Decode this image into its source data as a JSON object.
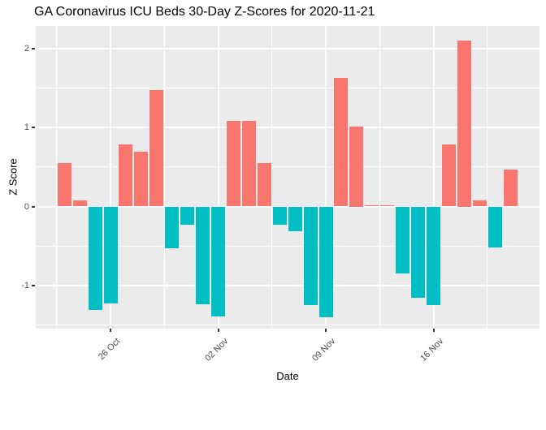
{
  "title": "GA Coronavirus ICU Beds 30-Day Z-Scores for 2020-11-21",
  "chart_data": {
    "type": "bar",
    "title": "GA Coronavirus ICU Beds 30-Day Z-Scores for 2020-11-21",
    "xlabel": "Date",
    "ylabel": "Z Score",
    "legend": "none",
    "grid": "major-and-minor",
    "panel_bg": "#EBEBEB",
    "gridline_color": "#FFFFFF",
    "tick_label_color": "#4D4D4D",
    "positive_color": "#F8766D",
    "negative_color": "#00BFC4",
    "ylim": [
      -1.55,
      2.28
    ],
    "x": [
      "2020-10-23",
      "2020-10-24",
      "2020-10-25",
      "2020-10-26",
      "2020-10-27",
      "2020-10-28",
      "2020-10-29",
      "2020-10-30",
      "2020-10-31",
      "2020-11-01",
      "2020-11-02",
      "2020-11-03",
      "2020-11-04",
      "2020-11-05",
      "2020-11-06",
      "2020-11-07",
      "2020-11-08",
      "2020-11-09",
      "2020-11-10",
      "2020-11-11",
      "2020-11-12",
      "2020-11-13",
      "2020-11-14",
      "2020-11-15",
      "2020-11-16",
      "2020-11-17",
      "2020-11-18",
      "2020-11-19",
      "2020-11-20",
      "2020-11-21"
    ],
    "values": [
      0.55,
      0.08,
      -1.31,
      -1.23,
      0.78,
      0.69,
      1.47,
      -0.53,
      -0.23,
      -1.24,
      -1.39,
      1.08,
      1.08,
      0.55,
      -0.23,
      -0.31,
      -1.25,
      -1.4,
      1.63,
      1.01,
      0.02,
      0.02,
      -0.85,
      -1.15,
      -1.25,
      0.78,
      2.1,
      0.08,
      -0.52,
      0.47
    ],
    "yticks": [
      {
        "label": "2",
        "value": 2
      },
      {
        "label": "1",
        "value": 1
      },
      {
        "label": "0",
        "value": 0
      },
      {
        "label": "-1",
        "value": -1
      }
    ],
    "xticks": [
      {
        "label": "26 Oct",
        "day_index": 3
      },
      {
        "label": "02 Nov",
        "day_index": 10
      },
      {
        "label": "09 Nov",
        "day_index": 17
      },
      {
        "label": "16 Nov",
        "day_index": 24
      }
    ]
  }
}
